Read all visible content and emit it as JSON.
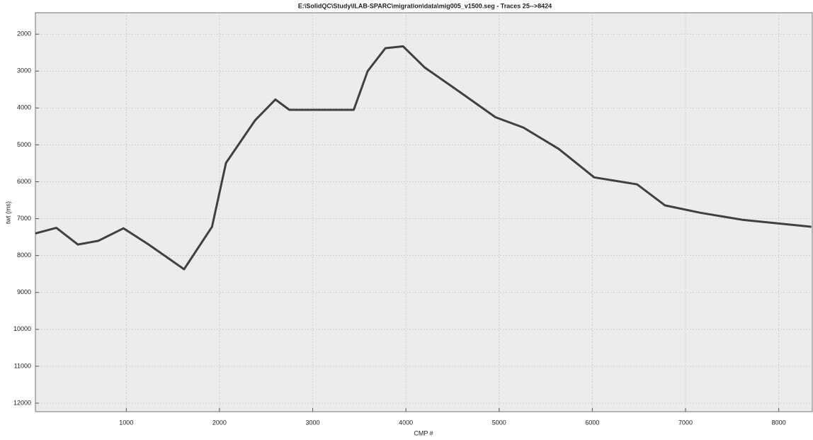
{
  "chart_data": {
    "type": "line",
    "title": "E:\\SolidQC\\Study\\ILAB-SPARC\\migration\\data\\mig005_v1500.seg - Traces 25-->8424",
    "x_label": "CMP #",
    "y_label": "twt (ms)",
    "x": [
      25,
      250,
      480,
      700,
      970,
      1240,
      1620,
      1920,
      2070,
      2380,
      2600,
      2750,
      3440,
      3590,
      3780,
      3970,
      4200,
      4580,
      4960,
      5260,
      5640,
      6020,
      6480,
      6780,
      7160,
      7610,
      8350
    ],
    "values": [
      7400,
      7250,
      7700,
      7600,
      7260,
      7700,
      8370,
      7220,
      5490,
      4340,
      3770,
      4050,
      4050,
      3000,
      2380,
      2330,
      2900,
      3570,
      4250,
      4530,
      5110,
      5880,
      6070,
      6640,
      6840,
      7030,
      7220
    ],
    "color": "#222222",
    "xlim": [
      25,
      8360
    ],
    "ylim": [
      1420,
      12230
    ],
    "y_inverted": true,
    "xticks": [
      1000,
      2000,
      3000,
      4000,
      5000,
      6000,
      7000,
      8000
    ],
    "yticks": [
      2000,
      3000,
      4000,
      5000,
      6000,
      7000,
      8000,
      9000,
      10000,
      11000,
      12000
    ],
    "grid": true
  }
}
